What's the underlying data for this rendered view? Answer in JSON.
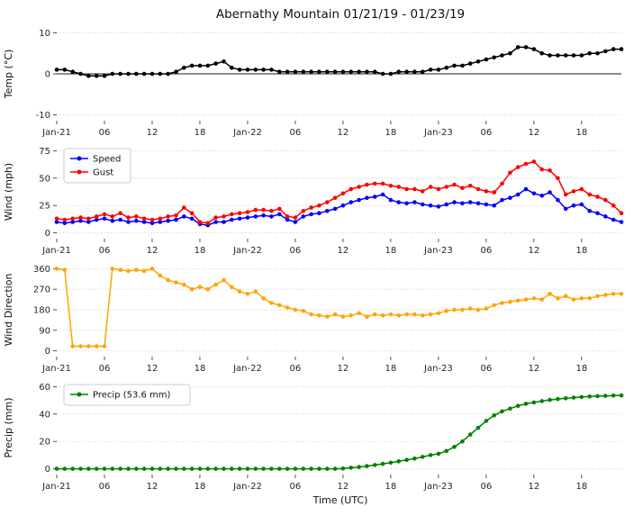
{
  "title": "Abernathy Mountain 01/21/19 - 01/23/19",
  "xlabel": "Time (UTC)",
  "hours_count": 72,
  "x_ticks": [
    "Jan-21",
    "06",
    "12",
    "18",
    "Jan-22",
    "06",
    "12",
    "18",
    "Jan-23",
    "06",
    "12",
    "18"
  ],
  "x_tick_hours": [
    0,
    6,
    12,
    18,
    24,
    30,
    36,
    42,
    48,
    54,
    60,
    66
  ],
  "chart_data": [
    {
      "type": "line",
      "name": "temperature",
      "ylabel": "Temp (°C)",
      "ylim": [
        -10,
        10
      ],
      "yticks": [
        -10,
        0,
        10
      ],
      "zero_line": true,
      "legend_visible": false,
      "series": [
        {
          "name": "Temp",
          "color": "#000000",
          "values": [
            1.0,
            1.0,
            0.5,
            0.0,
            -0.5,
            -0.5,
            -0.5,
            0.0,
            0.0,
            0.0,
            0.0,
            0.0,
            0.0,
            0.0,
            0.0,
            0.5,
            1.5,
            2.0,
            2.0,
            2.0,
            2.5,
            3.0,
            1.5,
            1.0,
            1.0,
            1.0,
            1.0,
            1.0,
            0.5,
            0.5,
            0.5,
            0.5,
            0.5,
            0.5,
            0.5,
            0.5,
            0.5,
            0.5,
            0.5,
            0.5,
            0.5,
            0.0,
            0.0,
            0.5,
            0.5,
            0.5,
            0.5,
            1.0,
            1.0,
            1.5,
            2.0,
            2.0,
            2.5,
            3.0,
            3.5,
            4.0,
            4.5,
            5.0,
            6.5,
            6.5,
            6.0,
            5.0,
            4.5,
            4.5,
            4.5,
            4.5,
            4.5,
            5.0,
            5.0,
            5.5,
            6.0,
            6.0
          ]
        }
      ]
    },
    {
      "type": "line",
      "name": "wind",
      "ylabel": "Wind (mph)",
      "ylim": [
        0,
        75
      ],
      "yticks": [
        0,
        25,
        50,
        75
      ],
      "zero_line": false,
      "legend_visible": true,
      "series": [
        {
          "name": "Speed",
          "color": "#0000ff",
          "values": [
            10,
            9,
            10,
            11,
            10,
            12,
            13,
            11,
            12,
            10,
            11,
            10,
            9,
            10,
            11,
            12,
            15,
            13,
            8,
            7,
            10,
            10,
            12,
            13,
            14,
            15,
            16,
            15,
            17,
            12,
            10,
            15,
            17,
            18,
            20,
            22,
            25,
            28,
            30,
            32,
            33,
            35,
            30,
            28,
            27,
            28,
            26,
            25,
            24,
            26,
            28,
            27,
            28,
            27,
            26,
            25,
            30,
            32,
            35,
            40,
            36,
            34,
            37,
            30,
            22,
            25,
            26,
            20,
            18,
            15,
            12,
            10
          ]
        },
        {
          "name": "Gust",
          "color": "#ff0000",
          "values": [
            13,
            12,
            13,
            14,
            13,
            15,
            17,
            15,
            18,
            14,
            15,
            13,
            12,
            13,
            15,
            16,
            23,
            18,
            10,
            9,
            14,
            15,
            17,
            18,
            19,
            21,
            21,
            20,
            22,
            15,
            14,
            20,
            23,
            25,
            28,
            32,
            36,
            40,
            42,
            44,
            45,
            45,
            43,
            42,
            40,
            40,
            38,
            42,
            40,
            42,
            44,
            41,
            43,
            40,
            38,
            37,
            45,
            55,
            60,
            63,
            65,
            58,
            57,
            50,
            35,
            38,
            40,
            35,
            33,
            30,
            25,
            18
          ]
        }
      ]
    },
    {
      "type": "line",
      "name": "wind-direction",
      "ylabel": "Wind Direction",
      "ylim": [
        0,
        360
      ],
      "yticks": [
        0,
        90,
        180,
        270,
        360
      ],
      "zero_line": false,
      "legend_visible": false,
      "series": [
        {
          "name": "Direction",
          "color": "#ffa500",
          "values": [
            360,
            355,
            20,
            20,
            20,
            20,
            20,
            360,
            355,
            350,
            355,
            350,
            360,
            330,
            310,
            300,
            290,
            270,
            280,
            270,
            290,
            310,
            280,
            260,
            250,
            260,
            230,
            210,
            200,
            190,
            180,
            175,
            160,
            155,
            150,
            160,
            150,
            155,
            165,
            150,
            160,
            155,
            160,
            155,
            160,
            160,
            155,
            160,
            165,
            175,
            180,
            180,
            185,
            180,
            185,
            200,
            210,
            215,
            220,
            225,
            230,
            225,
            250,
            230,
            240,
            225,
            230,
            230,
            240,
            245,
            250,
            250
          ]
        }
      ]
    },
    {
      "type": "line",
      "name": "precip",
      "ylabel": "Precip (mm)",
      "ylim": [
        0,
        60
      ],
      "yticks": [
        0,
        20,
        40,
        60
      ],
      "zero_line": false,
      "legend_visible": true,
      "series": [
        {
          "name": "Precip (53.6 mm)",
          "color": "#008000",
          "values": [
            0,
            0,
            0,
            0,
            0,
            0,
            0,
            0,
            0,
            0,
            0,
            0,
            0,
            0,
            0,
            0,
            0,
            0,
            0,
            0,
            0,
            0,
            0,
            0,
            0,
            0,
            0,
            0,
            0,
            0,
            0,
            0,
            0,
            0,
            0,
            0,
            0.3,
            0.8,
            1.3,
            2,
            2.8,
            3.6,
            4.5,
            5.5,
            6.5,
            7.5,
            8.7,
            10,
            11,
            13,
            16,
            20,
            25,
            30,
            35,
            39,
            42,
            44,
            46,
            47.5,
            48.5,
            49.5,
            50.3,
            51,
            51.5,
            52,
            52.4,
            52.8,
            53.1,
            53.3,
            53.5,
            53.6
          ]
        }
      ]
    }
  ]
}
